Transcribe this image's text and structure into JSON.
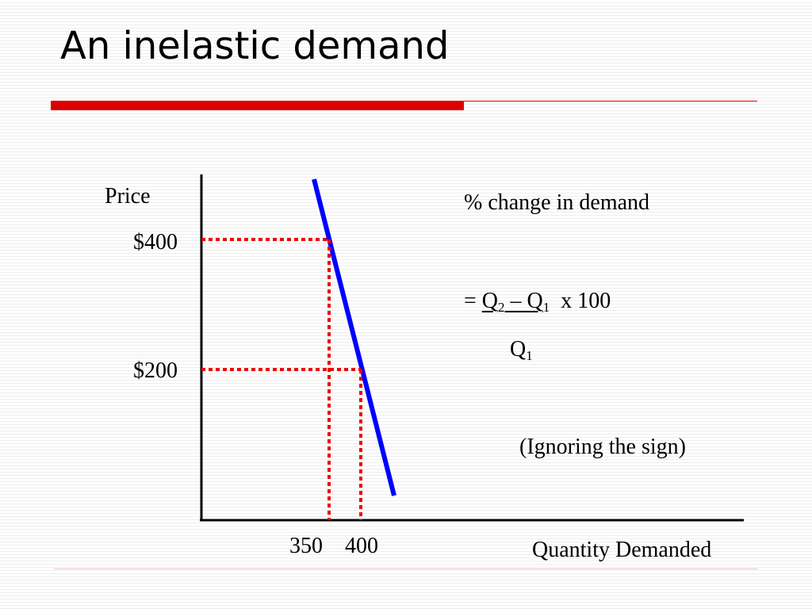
{
  "slide": {
    "title": "An inelastic demand",
    "colors": {
      "accent": "#dd0000",
      "demand_line": "#0000ff"
    }
  },
  "chart_data": {
    "type": "line",
    "title": "",
    "ylabel": "Price",
    "xlabel": "Quantity Demanded",
    "y_ticks": [
      {
        "label": "$400",
        "value": 400
      },
      {
        "label": "$200",
        "value": 200
      }
    ],
    "x_ticks": [
      {
        "label": "350",
        "value": 350
      },
      {
        "label": "400",
        "value": 400
      }
    ],
    "series": [
      {
        "values": [
          {
            "x": 350,
            "y": 400
          },
          {
            "x": 400,
            "y": 200
          }
        ]
      }
    ],
    "grid": false
  },
  "formula": {
    "heading": "% change in demand",
    "eq_prefix": "=",
    "q": "Q",
    "sub2": "2",
    "sub1": "1",
    "minus": "–",
    "times": "x 100",
    "note": "(Ignoring the sign)"
  }
}
